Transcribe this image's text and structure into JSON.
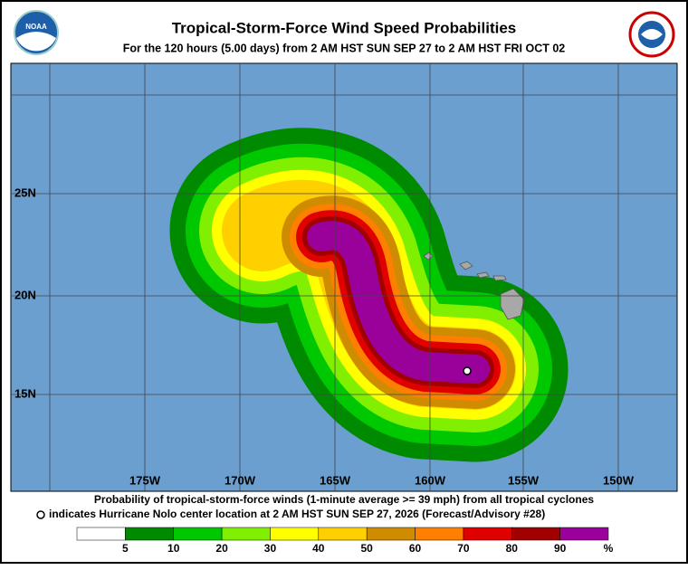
{
  "header": {
    "title": "Tropical-Storm-Force Wind Speed Probabilities",
    "subtitle": "For the 120 hours (5.00 days) from 2 AM HST SUN SEP 27 to 2 AM HST FRI OCT 02",
    "logo_left": "NOAA"
  },
  "map": {
    "lon_labels": [
      "175W",
      "170W",
      "165W",
      "160W",
      "155W",
      "150W"
    ],
    "lat_labels": [
      "25N",
      "20N",
      "15N"
    ]
  },
  "footer": {
    "line1": "Probability of tropical-storm-force winds (1-minute average >= 39 mph) from all tropical cyclones",
    "line2": "indicates Hurricane Nolo center location at 2 AM HST SUN SEP 27, 2026 (Forecast/Advisory #28)"
  },
  "legend": {
    "labels": [
      "5",
      "10",
      "20",
      "30",
      "40",
      "50",
      "60",
      "70",
      "80",
      "90",
      "%"
    ],
    "colors": [
      "#ffffff",
      "#008a00",
      "#00c800",
      "#80f000",
      "#ffff00",
      "#ffd000",
      "#d08c00",
      "#ff7f00",
      "#e00000",
      "#a00000",
      "#9a009a"
    ]
  }
}
